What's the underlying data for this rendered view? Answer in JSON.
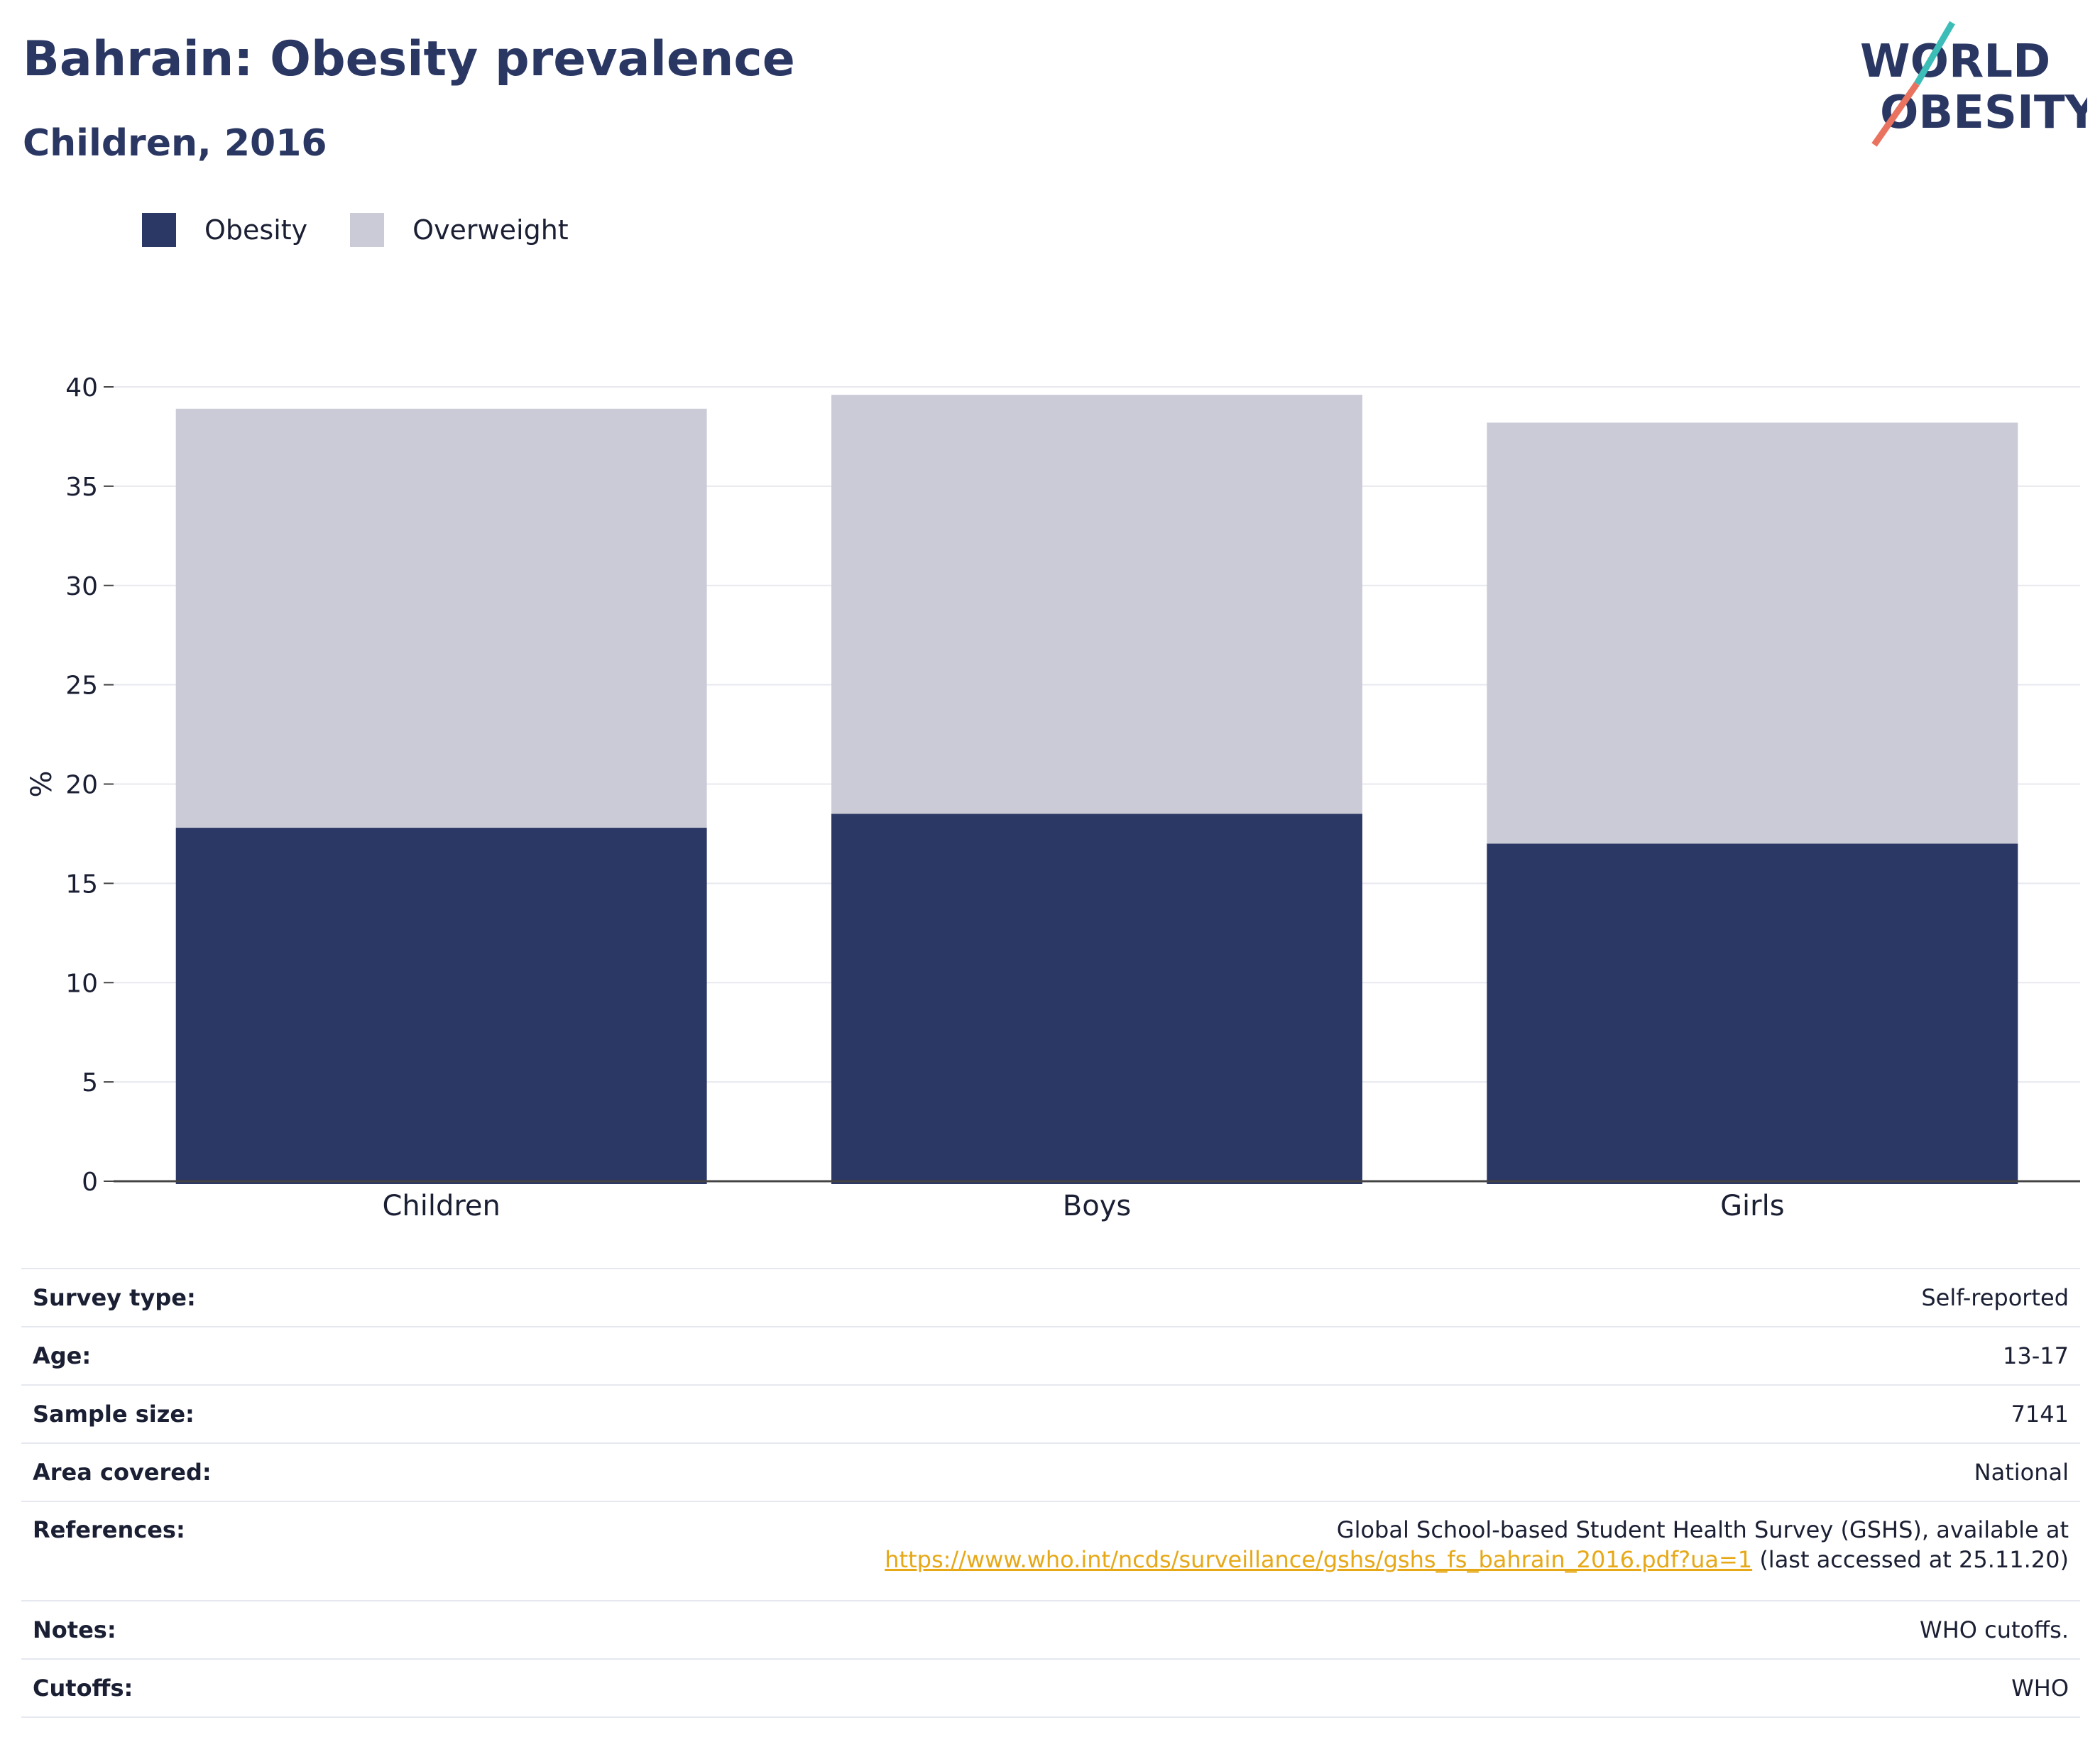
{
  "header": {
    "title": "Bahrain: Obesity prevalence",
    "subtitle": "Children, 2016"
  },
  "logo": {
    "line1": "WORLD",
    "line2": "OBESITY",
    "accent_teal": "#3cbdb8",
    "accent_coral": "#e9735f",
    "text_color": "#2a3763"
  },
  "legend": [
    {
      "label": "Obesity",
      "color": "#2b3764"
    },
    {
      "label": "Overweight",
      "color": "#cacbd7"
    }
  ],
  "chart_data": {
    "type": "bar",
    "stacked": true,
    "categories": [
      "Children",
      "Boys",
      "Girls"
    ],
    "series": [
      {
        "name": "Obesity",
        "values": [
          17.8,
          18.5,
          17.0
        ],
        "color": "#2b3764"
      },
      {
        "name": "Overweight",
        "values": [
          21.1,
          21.1,
          21.2
        ],
        "color": "#cacbd7"
      }
    ],
    "ylabel": "%",
    "ylim": [
      0,
      40
    ],
    "yticks": [
      0,
      5,
      10,
      15,
      20,
      25,
      30,
      35,
      40
    ],
    "grid": true,
    "legend_position": "top-left"
  },
  "info": {
    "survey_type": {
      "label": "Survey type:",
      "value": "Self-reported"
    },
    "age": {
      "label": "Age:",
      "value": "13-17"
    },
    "sample_size": {
      "label": "Sample size:",
      "value": "7141"
    },
    "area_covered": {
      "label": "Area covered:",
      "value": "National"
    },
    "references": {
      "label": "References:",
      "line1": "Global School-based Student Health Survey (GSHS), available at",
      "link": "https://www.who.int/ncds/surveillance/gshs/gshs_fs_bahrain_2016.pdf?ua=1",
      "suffix": " (last accessed at 25.11.20)"
    },
    "notes": {
      "label": "Notes:",
      "value": "WHO cutoffs."
    },
    "cutoffs": {
      "label": "Cutoffs:",
      "value": "WHO"
    }
  }
}
